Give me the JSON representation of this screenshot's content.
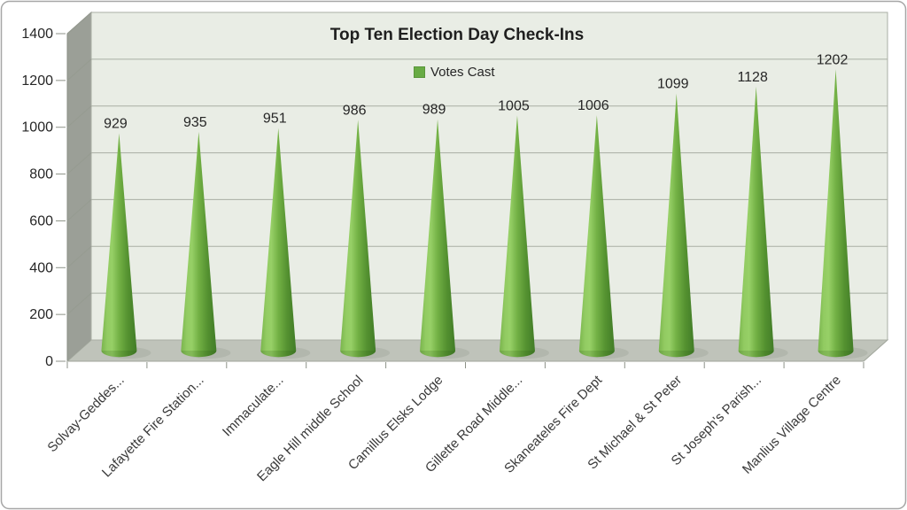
{
  "title": "Top Ten Election Day Check-Ins",
  "legend": {
    "label": "Votes Cast"
  },
  "chart_data": {
    "type": "bar",
    "variant": "3d-cone",
    "title": "Top Ten Election Day Check-Ins",
    "categories": [
      "Solvay-Geddes...",
      "Lafayette Fire Station...",
      "Immaculate...",
      "Eagle Hill middle School",
      "Camillus Elsks Lodge",
      "Gillette Road Middle...",
      "Skaneateles Fire Dept",
      "St Michael & St Peter",
      "St Joseph's Parish...",
      "Manlius Village Centre"
    ],
    "series": [
      {
        "name": "Votes Cast",
        "values": [
          929,
          935,
          951,
          986,
          989,
          1005,
          1006,
          1099,
          1128,
          1202
        ]
      }
    ],
    "data_labels": true,
    "xlabel": "",
    "ylabel": "",
    "ylim": [
      0,
      1400
    ],
    "yticks": [
      0,
      200,
      400,
      600,
      800,
      1000,
      1200,
      1400
    ],
    "grid": true,
    "legend_position": "top-center",
    "colors": {
      "cone_gradient": [
        {
          "offset": 0,
          "color": "#79b44c"
        },
        {
          "offset": 0.16,
          "color": "#92cb62"
        },
        {
          "offset": 0.3,
          "color": "#97d067"
        },
        {
          "offset": 0.5,
          "color": "#73b145"
        },
        {
          "offset": 0.75,
          "color": "#549130"
        },
        {
          "offset": 1,
          "color": "#417c27"
        }
      ],
      "legend_swatch": "#68ab44",
      "back_wall": "#e9ede5",
      "side_wall": "#9b9f97",
      "floor": "#bfc3ba",
      "gridline": "#a9aea4",
      "axis_tick": "#8d9288",
      "value_text": "#262626",
      "category_text": "#3a3a3a",
      "title_text": "#1f1f1f",
      "border": "#a6a6a6"
    }
  }
}
